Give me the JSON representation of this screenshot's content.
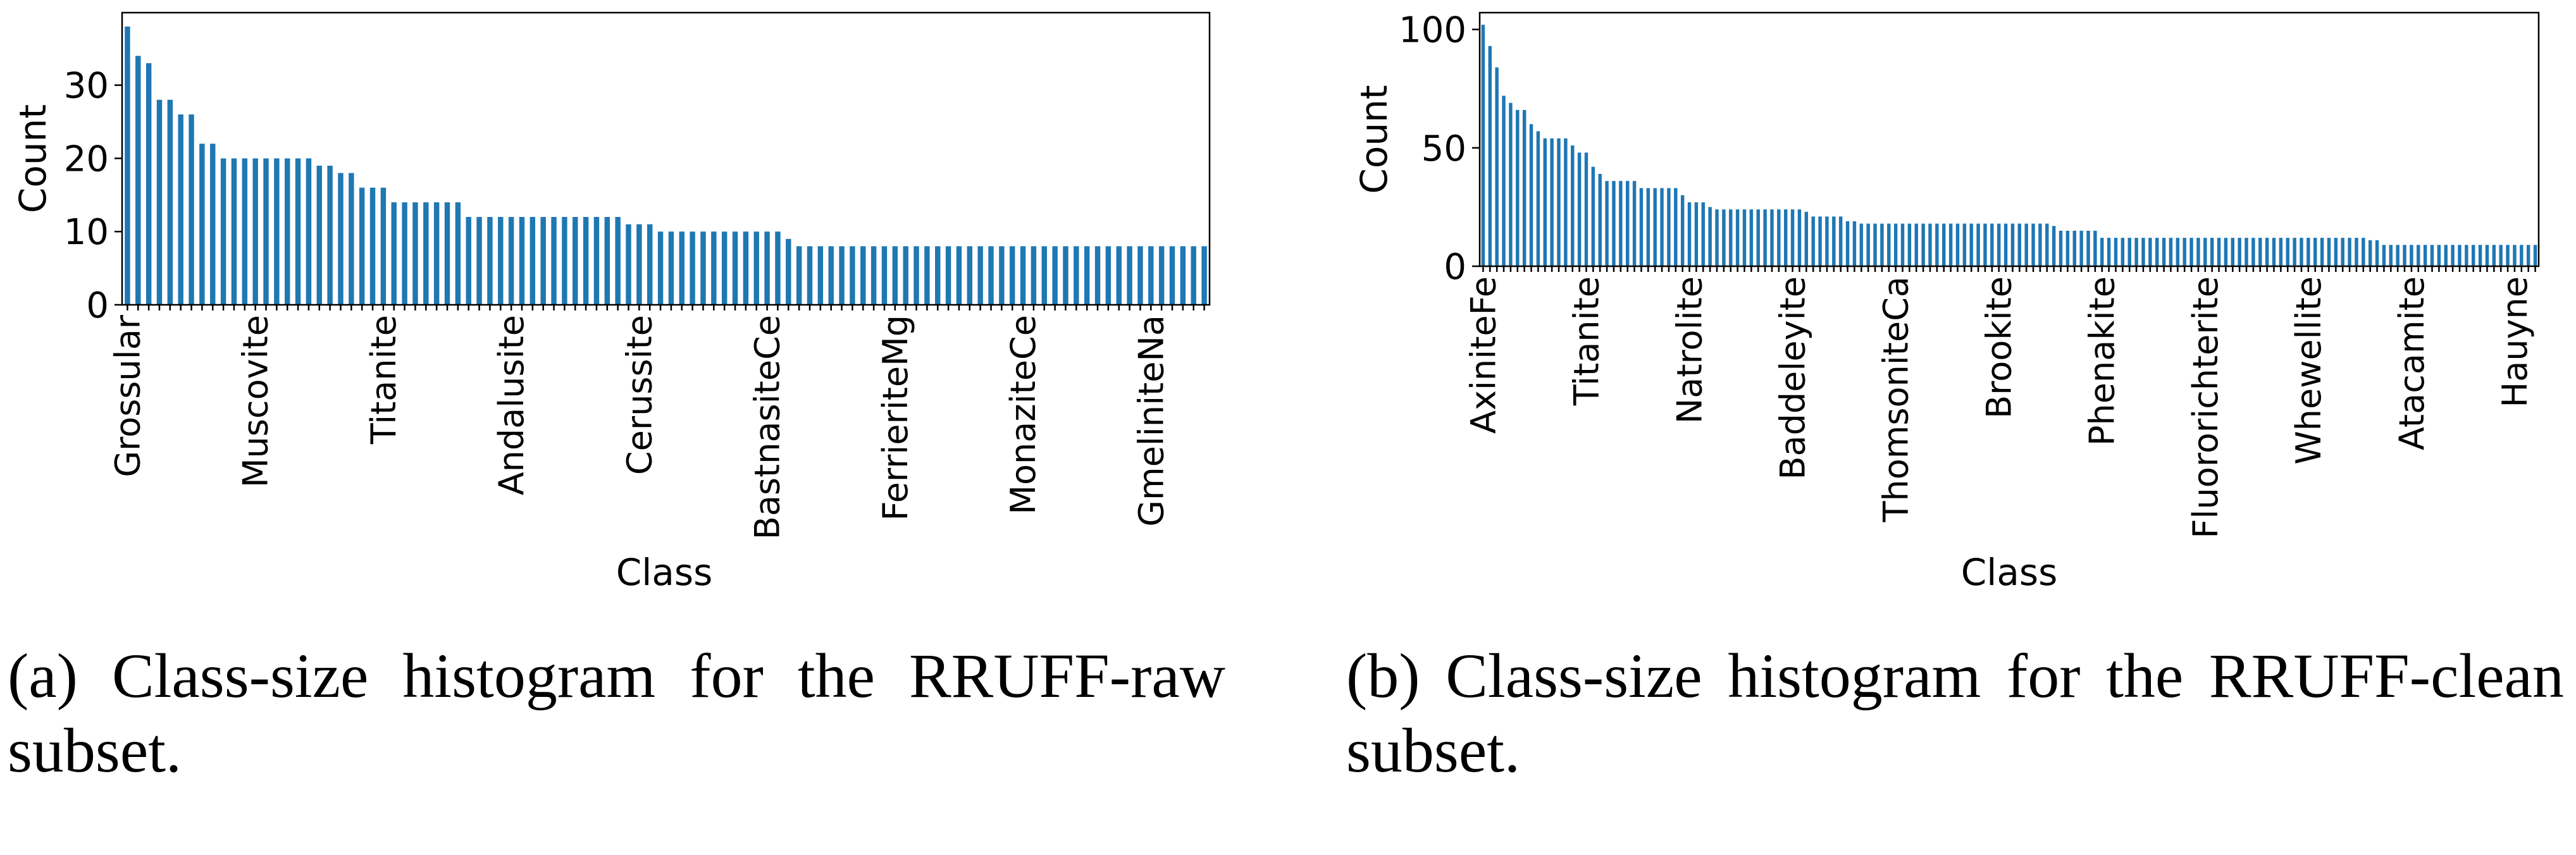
{
  "colors": {
    "bar": "#1f77b4",
    "axis": "#000000"
  },
  "chart_data": [
    {
      "type": "bar",
      "id": "a",
      "title": "",
      "xlabel": "Class",
      "ylabel": "Count",
      "ylim": [
        0,
        39.9
      ],
      "yticks": [
        0,
        10,
        20,
        30
      ],
      "grid": false,
      "legend": "none",
      "tick_labels": [
        {
          "index": 0,
          "label": "Grossular"
        },
        {
          "index": 12,
          "label": "Muscovite"
        },
        {
          "index": 24,
          "label": "Titanite"
        },
        {
          "index": 36,
          "label": "Andalusite"
        },
        {
          "index": 48,
          "label": "Cerussite"
        },
        {
          "index": 60,
          "label": "BastnasiteCe"
        },
        {
          "index": 72,
          "label": "FerrieriteMg"
        },
        {
          "index": 84,
          "label": "MonaziteCe"
        },
        {
          "index": 96,
          "label": "GmeliniteNa"
        }
      ],
      "values": [
        38,
        34,
        33,
        28,
        28,
        26,
        26,
        22,
        22,
        20,
        20,
        20,
        20,
        20,
        20,
        20,
        20,
        20,
        19,
        19,
        18,
        18,
        16,
        16,
        16,
        14,
        14,
        14,
        14,
        14,
        14,
        14,
        12,
        12,
        12,
        12,
        12,
        12,
        12,
        12,
        12,
        12,
        12,
        12,
        12,
        12,
        12,
        11,
        11,
        11,
        10,
        10,
        10,
        10,
        10,
        10,
        10,
        10,
        10,
        10,
        10,
        10,
        9,
        8,
        8,
        8,
        8,
        8,
        8,
        8,
        8,
        8,
        8,
        8,
        8,
        8,
        8,
        8,
        8,
        8,
        8,
        8,
        8,
        8,
        8,
        8,
        8,
        8,
        8,
        8,
        8,
        8,
        8,
        8,
        8,
        8,
        8,
        8,
        8,
        8,
        8,
        8
      ]
    },
    {
      "type": "bar",
      "id": "b",
      "title": "",
      "xlabel": "Class",
      "ylabel": "Count",
      "ylim": [
        0,
        107.1
      ],
      "yticks": [
        0,
        50,
        100
      ],
      "grid": false,
      "legend": "none",
      "tick_labels": [
        {
          "index": 0,
          "label": "AxiniteFe"
        },
        {
          "index": 15,
          "label": "Titanite"
        },
        {
          "index": 30,
          "label": "Natrolite"
        },
        {
          "index": 45,
          "label": "Baddeleyite"
        },
        {
          "index": 60,
          "label": "ThomsoniteCa"
        },
        {
          "index": 75,
          "label": "Brookite"
        },
        {
          "index": 90,
          "label": "Phenakite"
        },
        {
          "index": 105,
          "label": "Fluororichterite"
        },
        {
          "index": 120,
          "label": "Whewellite"
        },
        {
          "index": 135,
          "label": "Atacamite"
        },
        {
          "index": 150,
          "label": "Hauyne"
        }
      ],
      "values": [
        102,
        93,
        84,
        72,
        69,
        66,
        66,
        60,
        57,
        54,
        54,
        54,
        54,
        51,
        48,
        48,
        42,
        39,
        36,
        36,
        36,
        36,
        36,
        33,
        33,
        33,
        33,
        33,
        33,
        30,
        27,
        27,
        27,
        25,
        24,
        24,
        24,
        24,
        24,
        24,
        24,
        24,
        24,
        24,
        24,
        24,
        24,
        23,
        21,
        21,
        21,
        21,
        21,
        19,
        19,
        18,
        18,
        18,
        18,
        18,
        18,
        18,
        18,
        18,
        18,
        18,
        18,
        18,
        18,
        18,
        18,
        18,
        18,
        18,
        18,
        18,
        18,
        18,
        18,
        18,
        18,
        18,
        18,
        17,
        15,
        15,
        15,
        15,
        15,
        15,
        12,
        12,
        12,
        12,
        12,
        12,
        12,
        12,
        12,
        12,
        12,
        12,
        12,
        12,
        12,
        12,
        12,
        12,
        12,
        12,
        12,
        12,
        12,
        12,
        12,
        12,
        12,
        12,
        12,
        12,
        12,
        12,
        12,
        12,
        12,
        12,
        12,
        12,
        12,
        11,
        11,
        9,
        9,
        9,
        9,
        9,
        9,
        9,
        9,
        9,
        9,
        9,
        9,
        9,
        9,
        9,
        9,
        9,
        9,
        9,
        9,
        9,
        9,
        9
      ]
    }
  ],
  "captions": {
    "a": "(a) Class-size histogram for the RRUFF-raw subset.",
    "b": "(b) Class-size histogram for the RRUFF-clean subset."
  }
}
